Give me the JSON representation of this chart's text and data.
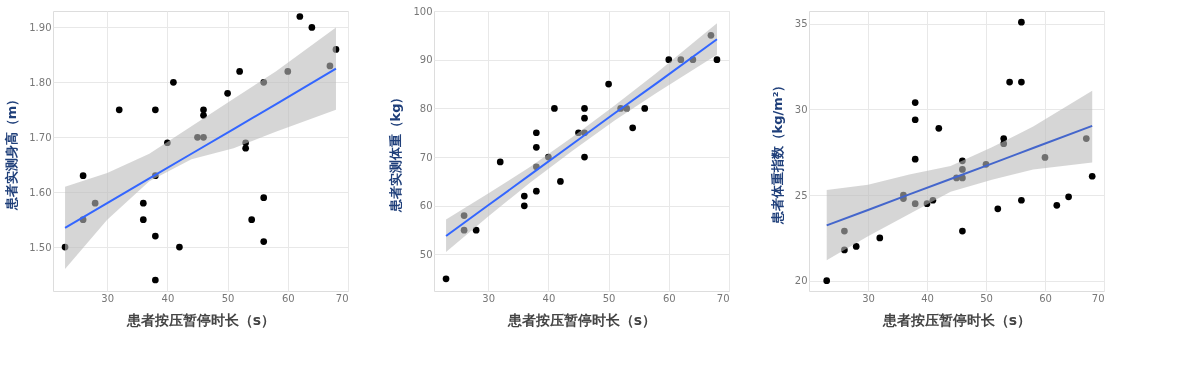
{
  "chart_data": [
    {
      "type": "scatter",
      "xlabel": "患者按压暂停时长（s）",
      "ylabel": "患者实测身高（m）",
      "xlim": [
        21,
        70
      ],
      "ylim": [
        1.42,
        1.93
      ],
      "xticks": [
        30,
        40,
        50,
        60,
        70
      ],
      "yticks": [
        {
          "value": 1.5,
          "label": "1.50"
        },
        {
          "value": 1.6,
          "label": "1.60"
        },
        {
          "value": 1.7,
          "label": "1.70"
        },
        {
          "value": 1.8,
          "label": "1.80"
        },
        {
          "value": 1.9,
          "label": "1.90"
        }
      ],
      "grid": true,
      "series": [
        {
          "type": "scatter",
          "color": "#000000",
          "marker": "circle",
          "x": [
            23,
            26,
            26,
            28,
            32,
            36,
            36,
            38,
            38,
            38,
            38,
            40,
            41,
            42,
            45,
            46,
            46,
            46,
            50,
            52,
            53,
            53,
            54,
            56,
            56,
            56,
            60,
            62,
            64,
            67,
            68
          ],
          "values": [
            1.5,
            1.63,
            1.55,
            1.58,
            1.75,
            1.58,
            1.55,
            1.75,
            1.63,
            1.52,
            1.44,
            1.69,
            1.8,
            1.5,
            1.7,
            1.75,
            1.74,
            1.7,
            1.78,
            1.82,
            1.69,
            1.68,
            1.55,
            1.8,
            1.59,
            1.51,
            1.82,
            1.92,
            1.9,
            1.83,
            1.86
          ]
        },
        {
          "type": "line",
          "color": "#3366ff",
          "x": [
            23,
            30,
            37,
            44,
            51,
            58,
            68
          ],
          "values": [
            1.535,
            1.58,
            1.625,
            1.67,
            1.715,
            1.76,
            1.825
          ],
          "lower": [
            1.46,
            1.55,
            1.62,
            1.66,
            1.68,
            1.71,
            1.75
          ],
          "upper": [
            1.61,
            1.635,
            1.67,
            1.72,
            1.77,
            1.82,
            1.9
          ]
        }
      ]
    },
    {
      "type": "scatter",
      "xlabel": "患者按压暂停时长（s）",
      "ylabel": "患者实测体重（kg）",
      "xlim": [
        21,
        70
      ],
      "ylim": [
        42.5,
        100
      ],
      "xticks": [
        30,
        40,
        50,
        60,
        70
      ],
      "yticks": [
        50,
        60,
        70,
        80,
        90,
        100
      ],
      "grid": true,
      "series": [
        {
          "type": "scatter",
          "color": "#000000",
          "marker": "circle",
          "x": [
            23,
            26,
            26,
            28,
            32,
            36,
            36,
            38,
            38,
            38,
            38,
            40,
            41,
            42,
            45,
            46,
            46,
            46,
            46,
            50,
            52,
            53,
            54,
            56,
            60,
            62,
            64,
            67,
            68
          ],
          "values": [
            45,
            58,
            55,
            55,
            69,
            62,
            60,
            75,
            72,
            68,
            63,
            70,
            80,
            65,
            75,
            80,
            78,
            75,
            70,
            85,
            80,
            80,
            76,
            80,
            90,
            90,
            90,
            95,
            90
          ]
        },
        {
          "type": "line",
          "color": "#3366ff",
          "x": [
            23,
            30,
            37,
            44,
            51,
            58,
            68
          ],
          "values": [
            53.8,
            60.1,
            66.4,
            72.7,
            79.0,
            85.2,
            94.2
          ],
          "lower": [
            50.5,
            57.8,
            64.8,
            71.3,
            77.5,
            83.2,
            91
          ],
          "upper": [
            57.2,
            62.5,
            68.0,
            74.1,
            80.6,
            87.3,
            97.5
          ]
        }
      ]
    },
    {
      "type": "scatter",
      "xlabel": "患者按压暂停时长（s）",
      "ylabel": "患者体重指数（kg/m²）",
      "xlim": [
        20,
        70
      ],
      "ylim": [
        19.4,
        35.75
      ],
      "xticks": [
        30,
        40,
        50,
        60,
        70
      ],
      "yticks": [
        20,
        25,
        30,
        35
      ],
      "grid": true,
      "series": [
        {
          "type": "scatter",
          "color": "#000000",
          "marker": "circle",
          "x": [
            23,
            26,
            26,
            28,
            32,
            36,
            36,
            38,
            38,
            38,
            38,
            40,
            41,
            42,
            45,
            46,
            46,
            46,
            46,
            50,
            52,
            53,
            53,
            54,
            56,
            56,
            56,
            60,
            62,
            64,
            67,
            68
          ],
          "values": [
            20.0,
            22.9,
            21.8,
            22.0,
            22.5,
            25.0,
            24.8,
            30.4,
            29.4,
            27.1,
            24.5,
            24.5,
            24.7,
            28.9,
            26.0,
            27.0,
            26.5,
            26.0,
            22.9,
            26.8,
            24.2,
            28.3,
            28.0,
            31.6,
            35.1,
            31.6,
            24.7,
            27.2,
            24.4,
            24.9,
            28.3,
            26.1
          ]
        },
        {
          "type": "line",
          "color": "#4466cc",
          "x": [
            23,
            30,
            37,
            44,
            51,
            58,
            68
          ],
          "values": [
            23.23,
            24.13,
            25.04,
            25.94,
            26.84,
            27.75,
            29.04
          ],
          "lower": [
            21.2,
            22.6,
            23.9,
            25.2,
            25.9,
            26.5,
            26.9
          ],
          "upper": [
            25.3,
            25.6,
            26.2,
            26.7,
            27.8,
            29.0,
            31.1
          ]
        }
      ]
    }
  ]
}
